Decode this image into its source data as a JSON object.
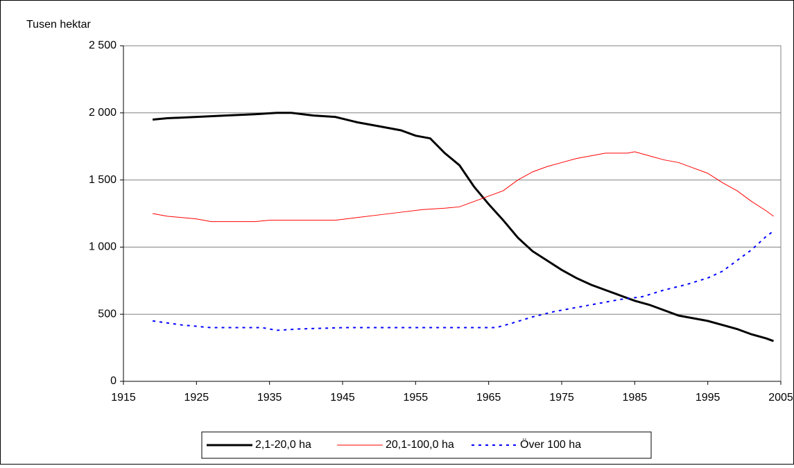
{
  "chart_data": {
    "type": "line",
    "y_label": "Tusen hektar",
    "xlim": [
      1915,
      2005
    ],
    "xticks": [
      1915,
      1925,
      1935,
      1945,
      1955,
      1965,
      1975,
      1985,
      1995,
      2005
    ],
    "ylim": [
      0,
      2500
    ],
    "yticks": [
      0,
      500,
      {
        "value": 1000,
        "label": "1 000"
      },
      {
        "value": 1500,
        "label": "1 500"
      },
      {
        "value": 2000,
        "label": "2 000"
      },
      {
        "value": 2500,
        "label": "2 500"
      }
    ],
    "grid": true,
    "legend": "bottom",
    "series": [
      {
        "name": "2,1-20,0 ha",
        "color": "#000000",
        "style": "solid",
        "width": 3,
        "x": [
          1919,
          1921,
          1925,
          1929,
          1933,
          1936,
          1938,
          1941,
          1944,
          1947,
          1950,
          1953,
          1955,
          1957,
          1959,
          1961,
          1963,
          1965,
          1967,
          1969,
          1971,
          1973,
          1975,
          1977,
          1979,
          1981,
          1983,
          1985,
          1987,
          1989,
          1991,
          1993,
          1995,
          1997,
          1999,
          2001,
          2003,
          2004
        ],
        "values": [
          1950,
          1960,
          1970,
          1980,
          1990,
          2000,
          2000,
          1980,
          1970,
          1930,
          1900,
          1870,
          1830,
          1810,
          1700,
          1610,
          1450,
          1320,
          1200,
          1070,
          970,
          900,
          830,
          770,
          720,
          680,
          640,
          600,
          570,
          530,
          490,
          470,
          450,
          420,
          390,
          350,
          320,
          300
        ]
      },
      {
        "name": "20,1-100,0 ha",
        "color": "#ff0000",
        "style": "solid",
        "width": 1,
        "x": [
          1919,
          1921,
          1925,
          1927,
          1933,
          1935,
          1944,
          1947,
          1950,
          1953,
          1956,
          1959,
          1961,
          1963,
          1965,
          1967,
          1969,
          1971,
          1973,
          1975,
          1977,
          1979,
          1981,
          1984,
          1985,
          1987,
          1989,
          1991,
          1993,
          1995,
          1997,
          1999,
          2001,
          2003,
          2004
        ],
        "values": [
          1250,
          1230,
          1210,
          1190,
          1190,
          1200,
          1200,
          1220,
          1240,
          1260,
          1280,
          1290,
          1300,
          1340,
          1380,
          1420,
          1500,
          1560,
          1600,
          1630,
          1660,
          1680,
          1700,
          1700,
          1710,
          1680,
          1650,
          1630,
          1590,
          1550,
          1480,
          1420,
          1340,
          1270,
          1230
        ]
      },
      {
        "name": "Över 100 ha",
        "color": "#0000ff",
        "style": "dashed",
        "width": 2,
        "x": [
          1919,
          1923,
          1927,
          1934,
          1936,
          1939,
          1945,
          1966,
          1968,
          1971,
          1974,
          1977,
          1980,
          1983,
          1986,
          1989,
          1992,
          1995,
          1997,
          1999,
          2001,
          2003,
          2004
        ],
        "values": [
          450,
          420,
          400,
          400,
          380,
          390,
          400,
          400,
          430,
          480,
          520,
          550,
          580,
          610,
          630,
          680,
          720,
          770,
          820,
          900,
          980,
          1080,
          1120
        ]
      }
    ]
  }
}
